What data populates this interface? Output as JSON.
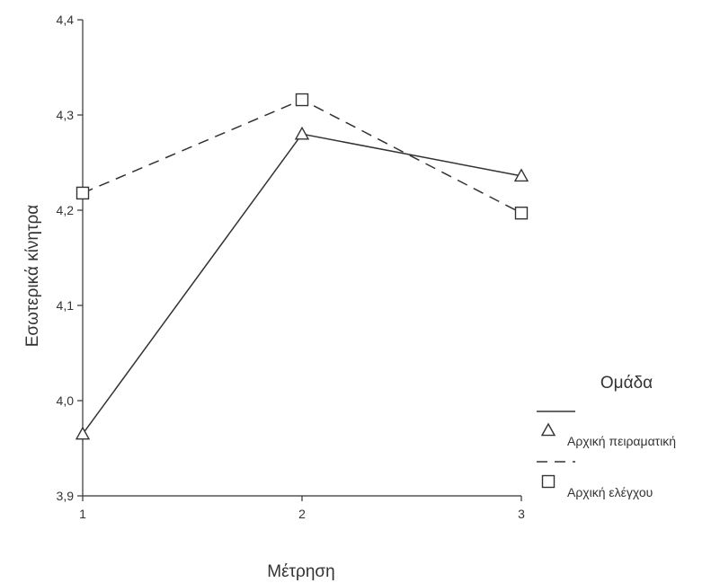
{
  "chart_data": {
    "type": "line",
    "title": "",
    "xlabel": "Μέτρηση",
    "ylabel": "Εσωτερικά κίνητρα",
    "x": [
      1,
      2,
      3
    ],
    "x_tick_labels": [
      "1",
      "2",
      "3"
    ],
    "ylim": [
      3.9,
      4.4
    ],
    "y_ticks": [
      3.9,
      4.0,
      4.1,
      4.2,
      4.3,
      4.4
    ],
    "y_tick_labels": [
      "3,9",
      "4,0",
      "4,1",
      "4,2",
      "4,3",
      "4,4"
    ],
    "grid": false,
    "legend": {
      "title": "Ομάδα",
      "placement": "right"
    },
    "series": [
      {
        "name": "Αρχική πειραματική",
        "values": [
          3.965,
          4.28,
          4.236
        ],
        "line_style": "solid",
        "marker": "triangle"
      },
      {
        "name": "Αρχική ελέγχου",
        "values": [
          4.218,
          4.316,
          4.197
        ],
        "line_style": "dashed",
        "marker": "square"
      }
    ],
    "colors": {
      "ink": "#333333",
      "background": "#ffffff"
    }
  }
}
